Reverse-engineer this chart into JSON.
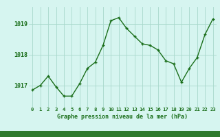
{
  "hours": [
    0,
    1,
    2,
    3,
    4,
    5,
    6,
    7,
    8,
    9,
    10,
    11,
    12,
    13,
    14,
    15,
    16,
    17,
    18,
    19,
    20,
    21,
    22,
    23
  ],
  "pressure": [
    1016.85,
    1017.0,
    1017.3,
    1016.95,
    1016.65,
    1016.65,
    1017.05,
    1017.55,
    1017.75,
    1018.3,
    1019.1,
    1019.2,
    1018.85,
    1018.6,
    1018.35,
    1018.3,
    1018.15,
    1017.8,
    1017.7,
    1017.1,
    1017.55,
    1017.9,
    1018.65,
    1019.15
  ],
  "line_color": "#1a6e1a",
  "marker_color": "#1a6e1a",
  "bg_color": "#d6f5f0",
  "grid_color": "#a8d8cc",
  "xlabel": "Graphe pression niveau de la mer (hPa)",
  "xlabel_color": "#1a6e1a",
  "tick_color": "#1a6e1a",
  "yticks": [
    1017,
    1018,
    1019
  ],
  "ylim": [
    1016.3,
    1019.55
  ],
  "xlim": [
    -0.5,
    23.5
  ],
  "xtick_labels": [
    "0",
    "1",
    "2",
    "3",
    "4",
    "5",
    "6",
    "7",
    "8",
    "9",
    "10",
    "11",
    "12",
    "13",
    "14",
    "15",
    "16",
    "17",
    "18",
    "19",
    "20",
    "21",
    "22",
    "23"
  ],
  "bottom_bar_color": "#2d7a2d"
}
